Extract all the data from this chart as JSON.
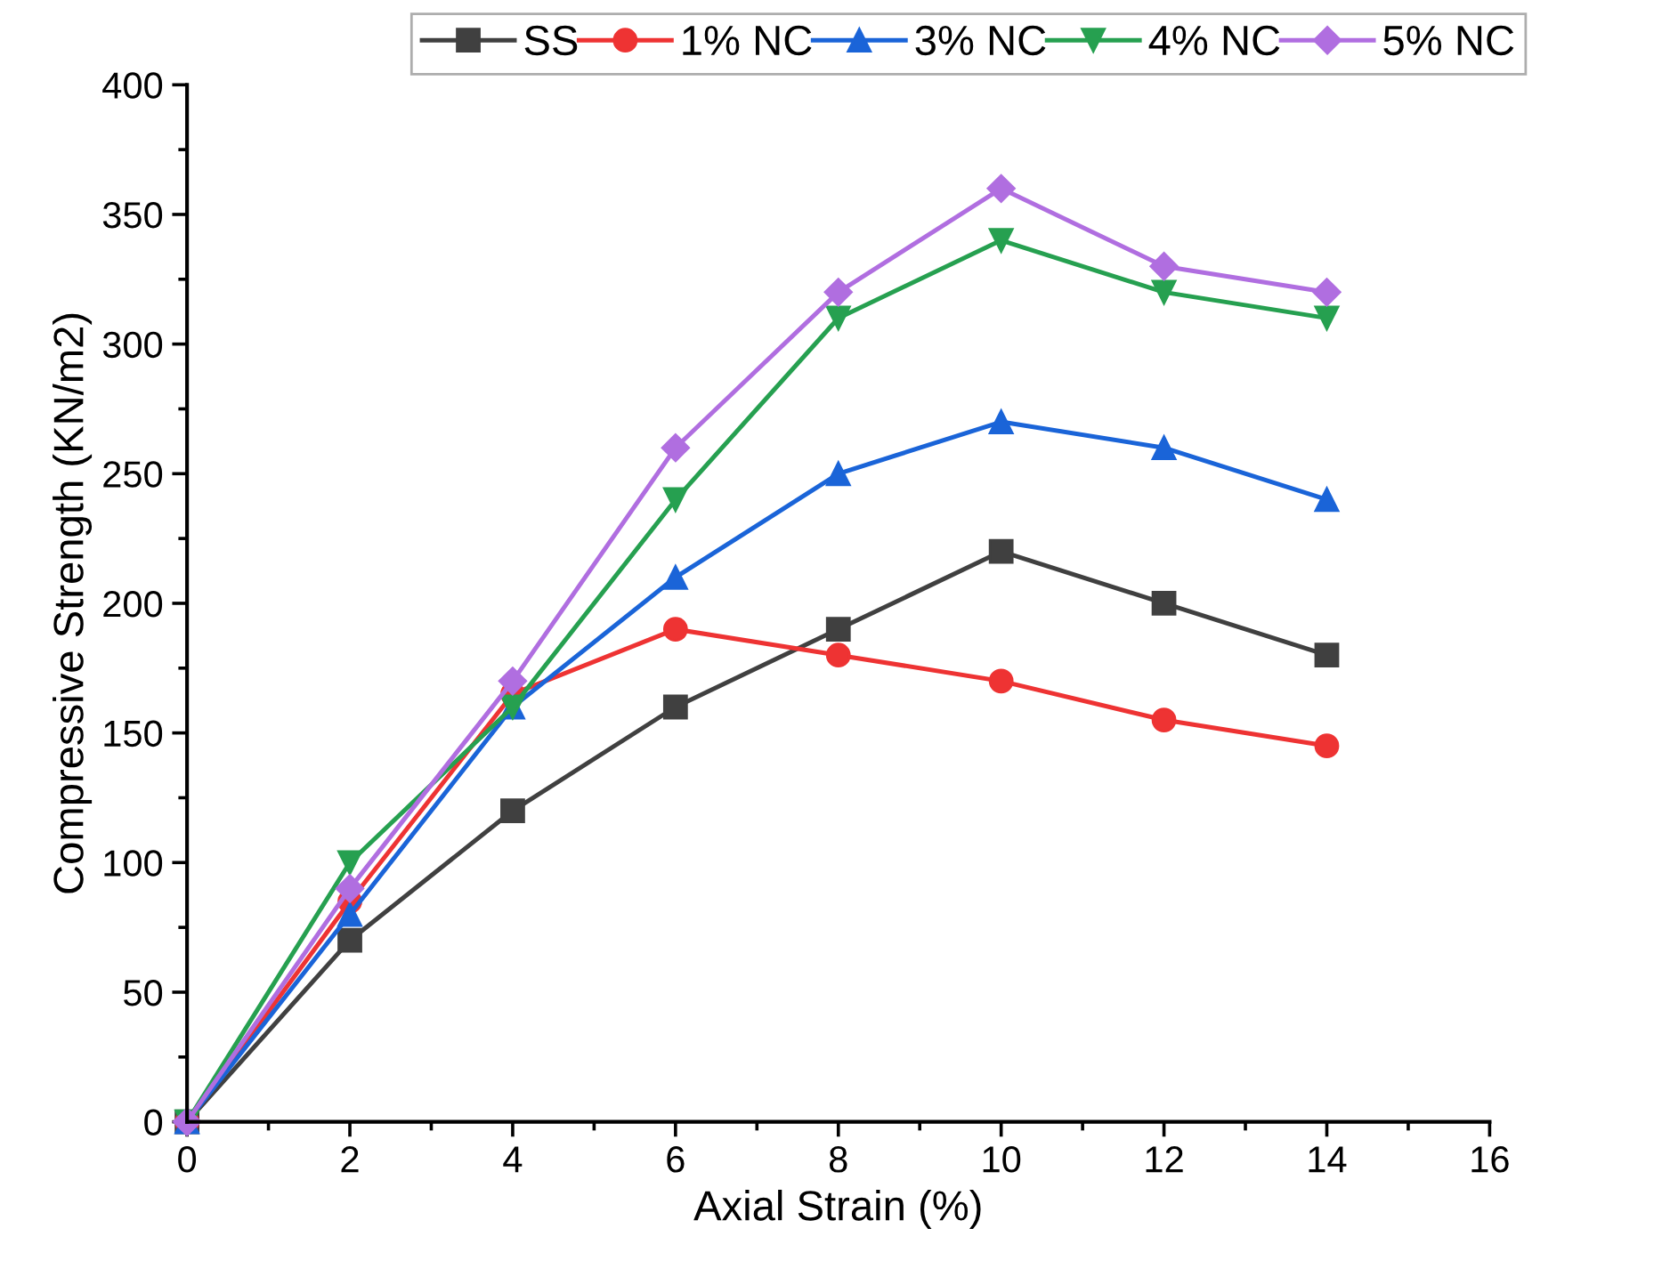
{
  "chart_data": {
    "type": "line",
    "xlabel": "Axial Strain (%)",
    "ylabel": "Compressive Strength (KN/m2)",
    "x": [
      0,
      2,
      4,
      6,
      8,
      10,
      12,
      14
    ],
    "series": [
      {
        "name": "SS",
        "color": "#404040",
        "marker": "square",
        "values": [
          0,
          70,
          120,
          160,
          190,
          220,
          200,
          180
        ]
      },
      {
        "name": "1% NC",
        "color": "#ee3333",
        "marker": "circle",
        "values": [
          0,
          85,
          165,
          190,
          180,
          170,
          155,
          145
        ]
      },
      {
        "name": "3% NC",
        "color": "#1a64d8",
        "marker": "triangle",
        "values": [
          0,
          80,
          160,
          210,
          250,
          270,
          260,
          240
        ]
      },
      {
        "name": "4% NC",
        "color": "#26a050",
        "marker": "triangle_down",
        "values": [
          0,
          100,
          160,
          240,
          310,
          340,
          320,
          310
        ]
      },
      {
        "name": "5% NC",
        "color": "#b06ee0",
        "marker": "diamond",
        "values": [
          0,
          90,
          170,
          260,
          320,
          360,
          330,
          320
        ]
      }
    ],
    "xlim": [
      0,
      16
    ],
    "xticks": [
      0,
      2,
      4,
      6,
      8,
      10,
      12,
      14,
      16
    ],
    "ylim": [
      0,
      400
    ],
    "yticks": [
      0,
      50,
      100,
      150,
      200,
      250,
      300,
      350,
      400
    ],
    "grid": false,
    "legend": "top",
    "line_style": "solid"
  }
}
